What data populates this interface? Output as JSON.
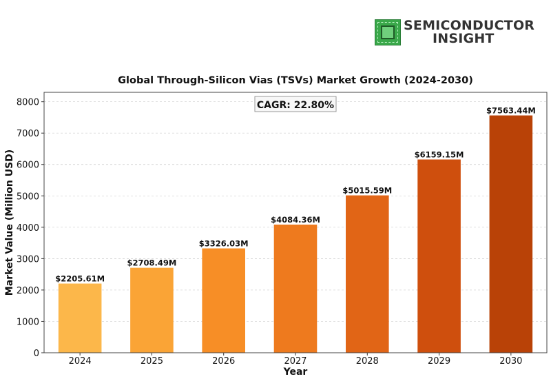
{
  "logo": {
    "line1": "SEMICONDUCTOR",
    "line2": "INSIGHT"
  },
  "chart_data": {
    "type": "bar",
    "title": "Global Through-Silicon Vias (TSVs) Market Growth (2024-2030)",
    "xlabel": "Year",
    "ylabel": "Market Value (Million USD)",
    "categories": [
      "2024",
      "2025",
      "2026",
      "2027",
      "2028",
      "2029",
      "2030"
    ],
    "values": [
      2205.61,
      2708.49,
      3326.03,
      4084.36,
      5015.59,
      6159.15,
      7563.44
    ],
    "data_labels": [
      "$2205.61M",
      "$2708.49M",
      "$3326.03M",
      "$4084.36M",
      "$5015.59M",
      "$6159.15M",
      "$7563.44M"
    ],
    "annotation": "CAGR: 22.80%",
    "ylim": [
      0,
      8300
    ],
    "yticks": [
      0,
      1000,
      2000,
      3000,
      4000,
      5000,
      6000,
      7000,
      8000
    ],
    "grid": true,
    "bar_colors": [
      "#fcb74a",
      "#faa436",
      "#f78e26",
      "#ee7a1e",
      "#e16516",
      "#cf4f0d",
      "#b94207"
    ]
  }
}
